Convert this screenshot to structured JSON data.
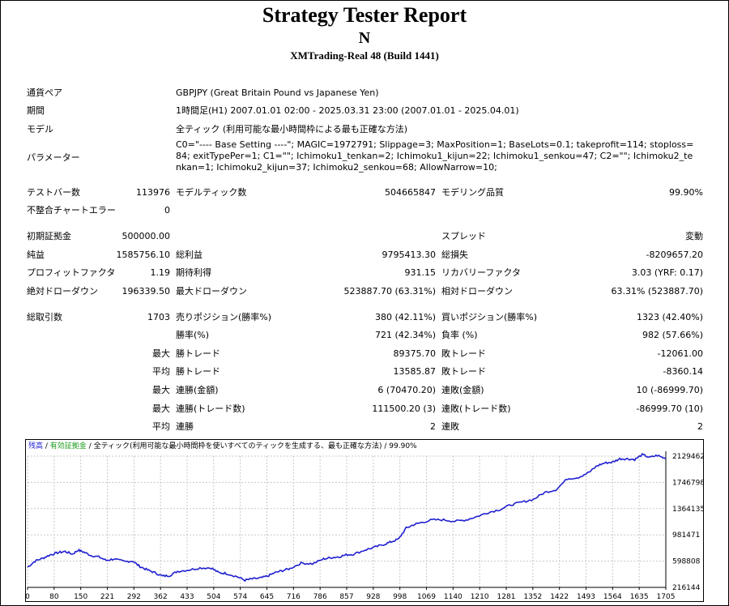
{
  "header": {
    "title": "Strategy Tester Report",
    "ea_name": "N",
    "server": "XMTrading-Real 48 (Build 1441)"
  },
  "settings": {
    "symbol_label": "通貨ペア",
    "symbol_value": "GBPJPY (Great Britain Pound vs Japanese Yen)",
    "period_label": "期間",
    "period_value": "1時間足(H1) 2007.01.01 02:00 - 2025.03.31 23:00 (2007.01.01 - 2025.04.01)",
    "model_label": "モデル",
    "model_value": "全ティック (利用可能な最小時間枠による最も正確な方法)",
    "params_label": "パラメーター",
    "params_value": "C0=\"---- Base Setting ----\"; MAGIC=1972791; Slippage=3; MaxPosition=1; BaseLots=0.1; takeprofit=114; stoploss=84; exitTypePer=1; C1=\"\"; Ichimoku1_tenkan=2; Ichimoku1_kijun=22; Ichimoku1_senkou=47; C2=\"\"; Ichimoku2_tenkan=1; Ichimoku2_kijun=37; Ichimoku2_senkou=68; AllowNarrow=10;"
  },
  "stats": {
    "bars_label": "テストバー数",
    "bars_value": "113976",
    "ticks_label": "モデルティック数",
    "ticks_value": "504665847",
    "quality_label": "モデリング品質",
    "quality_value": "99.90%",
    "mismatch_label": "不整合チャートエラー",
    "mismatch_value": "0",
    "deposit_label": "初期証拠金",
    "deposit_value": "500000.00",
    "spread_label": "スプレッド",
    "spread_value": "変動",
    "net_label": "純益",
    "net_value": "1585756.10",
    "gross_profit_label": "総利益",
    "gross_profit_value": "9795413.30",
    "gross_loss_label": "総損失",
    "gross_loss_value": "-8209657.20",
    "pf_label": "プロフィットファクタ",
    "pf_value": "1.19",
    "expected_label": "期待利得",
    "expected_value": "931.15",
    "recovery_label": "リカバリーファクタ",
    "recovery_value": "3.03 (YRF: 0.17)",
    "abs_dd_label": "絶対ドローダウン",
    "abs_dd_value": "196339.50",
    "max_dd_label": "最大ドローダウン",
    "max_dd_value": "523887.70 (63.31%)",
    "rel_dd_label": "相対ドローダウン",
    "rel_dd_value": "63.31% (523887.70)",
    "trades_label": "総取引数",
    "trades_value": "1703",
    "short_label": "売りポジション(勝率%)",
    "short_value": "380 (42.11%)",
    "long_label": "買いポジション(勝率%)",
    "long_value": "1323 (42.40%)",
    "winrate_label": "勝率(%)",
    "winrate_value": "721 (42.34%)",
    "lossrate_label": "負率 (%)",
    "lossrate_value": "982 (57.66%)",
    "max_prefix": "最大",
    "avg_prefix": "平均",
    "largest_win_label": "勝トレード",
    "largest_win_value": "89375.70",
    "largest_loss_label": "敗トレード",
    "largest_loss_value": "-12061.00",
    "avg_win_label": "勝トレード",
    "avg_win_value": "13585.87",
    "avg_loss_label": "敗トレード",
    "avg_loss_value": "-8360.14",
    "max_consec_win_label": "連勝(金額)",
    "max_consec_win_value": "6 (70470.20)",
    "max_consec_loss_label": "連敗(金額)",
    "max_consec_loss_value": "10 (-86999.70)",
    "max_consec_profit_label": "連勝(トレード数)",
    "max_consec_profit_value": "111500.20 (3)",
    "max_consec_lossamt_label": "連敗(トレード数)",
    "max_consec_lossamt_value": "-86999.70 (10)",
    "avg_consec_win_label": "連勝",
    "avg_consec_win_value": "2",
    "avg_consec_loss_label": "連敗",
    "avg_consec_loss_value": "2"
  },
  "chart_legend": {
    "balance": "残高",
    "sep1": " / ",
    "equity": "有効証拠金",
    "sep2": " / ",
    "model": "全ティック(利用可能な最小時間枠を使いすべてのティックを生成する、最も正確な方法)",
    "sep3": " / ",
    "quality": "99.90%"
  },
  "colors": {
    "balance_line": "#1f1fd0",
    "equity_label": "#1a9a1a",
    "grid": "#c8c8c8"
  },
  "chart_data": {
    "type": "line",
    "x_ticks": [
      "0",
      "80",
      "150",
      "221",
      "292",
      "362",
      "433",
      "504",
      "574",
      "645",
      "716",
      "786",
      "857",
      "928",
      "998",
      "1069",
      "1140",
      "1210",
      "1281",
      "1352",
      "1422",
      "1493",
      "1564",
      "1635",
      "1705"
    ],
    "y_ticks": [
      "2129462",
      "1746798",
      "1364135",
      "981471",
      "598808",
      "216144"
    ],
    "xlim": [
      0,
      1703
    ],
    "ylim": [
      216144,
      2129462
    ],
    "series": [
      {
        "name": "残高",
        "x": [
          0,
          20,
          40,
          60,
          80,
          100,
          120,
          135,
          150,
          170,
          190,
          210,
          230,
          260,
          280,
          300,
          320,
          340,
          360,
          380,
          400,
          430,
          460,
          490,
          510,
          530,
          560,
          580,
          600,
          620,
          640,
          660,
          680,
          700,
          730,
          760,
          790,
          810,
          830,
          850,
          870,
          900,
          925,
          950,
          970,
          990,
          1010,
          1030,
          1050,
          1080,
          1110,
          1140,
          1170,
          1200,
          1230,
          1260,
          1290,
          1320,
          1350,
          1380,
          1410,
          1440,
          1470,
          1500,
          1520,
          1540,
          1560,
          1580,
          1600,
          1620,
          1640,
          1660,
          1680,
          1703
        ],
        "y": [
          510000,
          600000,
          640000,
          690000,
          720000,
          740000,
          700000,
          760000,
          730000,
          680000,
          660000,
          610000,
          630000,
          590000,
          600000,
          520000,
          470000,
          430000,
          380000,
          390000,
          450000,
          470000,
          500000,
          500000,
          430000,
          420000,
          370000,
          320000,
          340000,
          350000,
          380000,
          430000,
          460000,
          490000,
          570000,
          560000,
          630000,
          650000,
          660000,
          690000,
          700000,
          760000,
          800000,
          840000,
          880000,
          920000,
          1080000,
          1130000,
          1160000,
          1200000,
          1200000,
          1180000,
          1200000,
          1250000,
          1310000,
          1350000,
          1420000,
          1460000,
          1500000,
          1600000,
          1640000,
          1800000,
          1820000,
          1900000,
          1990000,
          2030000,
          2040000,
          2090000,
          2090000,
          2080000,
          2150000,
          2110000,
          2140000,
          2090000
        ]
      }
    ]
  }
}
